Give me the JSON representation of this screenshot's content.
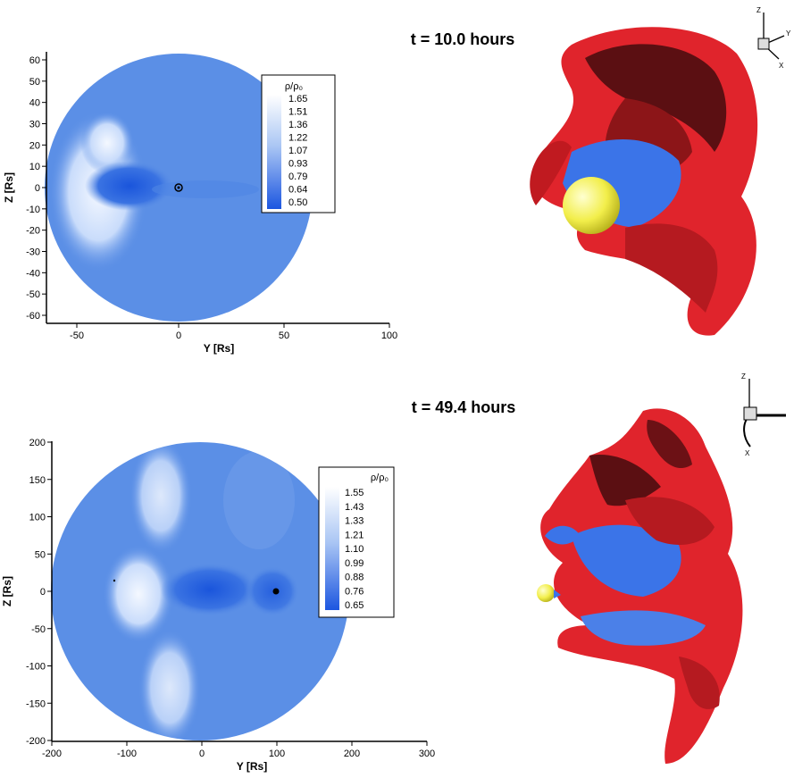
{
  "panels": [
    {
      "time_label": "t = 10.0 hours",
      "y_axis_label": "Z [Rs]",
      "x_axis_label": "Y [Rs]",
      "x_ticks": [
        "-50",
        "0",
        "50",
        "100"
      ],
      "y_ticks": [
        "60",
        "50",
        "40",
        "30",
        "20",
        "10",
        "0",
        "-10",
        "-20",
        "-30",
        "-40",
        "-50",
        "-60"
      ],
      "legend": {
        "title": "ρ/ρ₀",
        "levels": [
          "1.65",
          "1.51",
          "1.36",
          "1.22",
          "1.07",
          "0.93",
          "0.79",
          "0.64",
          "0.50"
        ]
      },
      "triad_labels": [
        "Z",
        "Y",
        "X"
      ]
    },
    {
      "time_label": "t = 49.4 hours",
      "y_axis_label": "Z [Rs]",
      "x_axis_label": "Y [Rs]",
      "x_ticks": [
        "-200",
        "-100",
        "0",
        "100",
        "200",
        "300"
      ],
      "y_ticks": [
        "200",
        "150",
        "100",
        "50",
        "0",
        "-50",
        "-100",
        "-150",
        "-200"
      ],
      "legend": {
        "title": "ρ/ρ₀",
        "levels": [
          "1.55",
          "1.43",
          "1.33",
          "1.21",
          "1.10",
          "0.99",
          "0.88",
          "0.76",
          "0.65"
        ]
      },
      "triad_labels": [
        "Z",
        "X"
      ]
    }
  ],
  "colors": {
    "background_density": "#5b8fe6",
    "high_density": "#ffffff",
    "low_density": "#1f5fe0",
    "isosurface_red": "#e0242c",
    "isosurface_blue": "#3b74e8",
    "sun": "#f2ee4a"
  }
}
